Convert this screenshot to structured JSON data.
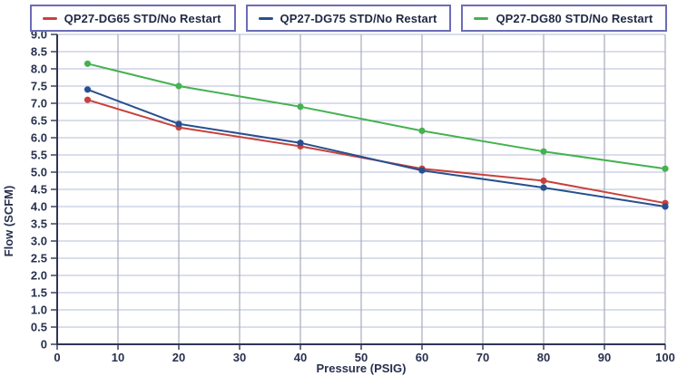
{
  "page": {
    "background": "#ffffff"
  },
  "legend": {
    "border_color": "#6b6db5",
    "text_color": "#1f2a44"
  },
  "chart_data": {
    "type": "line",
    "title": "",
    "xlabel": "Pressure (PSIG)",
    "ylabel": "Flow (SCFM)",
    "xlim": [
      0,
      100
    ],
    "ylim": [
      0,
      9
    ],
    "x_ticks": [
      0,
      10,
      20,
      30,
      40,
      50,
      60,
      70,
      80,
      90,
      100
    ],
    "y_ticks": [
      0,
      0.5,
      1,
      1.5,
      2,
      2.5,
      3,
      3.5,
      4,
      4.5,
      5,
      5.5,
      6,
      6.5,
      7,
      7.5,
      8,
      8.5,
      9
    ],
    "y_tick_labels": [
      "0",
      "0.5",
      "1.0",
      "1.5",
      "2.0",
      "2.5",
      "3.0",
      "3.5",
      "4.0",
      "4.5",
      "5.0",
      "5.5",
      "6.0",
      "6.5",
      "7.0",
      "7.5",
      "8.0",
      "8.5",
      "9.0"
    ],
    "grid": true,
    "legend_position": "top",
    "x": [
      5,
      20,
      40,
      60,
      80,
      100
    ],
    "series": [
      {
        "name": "QP27-DG65 STD/No Restart",
        "color": "#c9413d",
        "values": [
          7.1,
          6.3,
          5.75,
          5.1,
          4.75,
          4.1
        ]
      },
      {
        "name": "QP27-DG75 STD/No Restart",
        "color": "#27508f",
        "values": [
          7.4,
          6.4,
          5.85,
          5.05,
          4.55,
          4.0
        ]
      },
      {
        "name": "QP27-DG80 STD/No Restart",
        "color": "#46b152",
        "values": [
          8.15,
          7.5,
          6.9,
          6.2,
          5.6,
          5.1
        ]
      }
    ]
  },
  "colors": {
    "grid_horizontal": "#c4c9e0",
    "grid_vertical": "#a8abbc",
    "axis": "#2e3655",
    "tick_text": "#28304f"
  }
}
